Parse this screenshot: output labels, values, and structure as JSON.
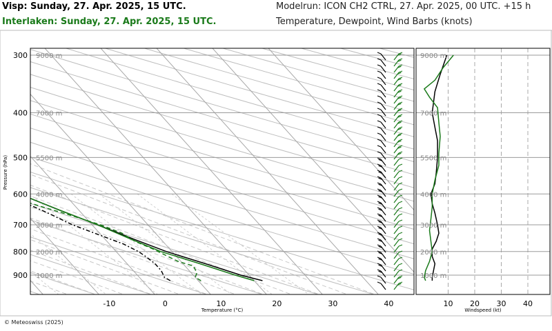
{
  "header": {
    "station1": "Visp: Sunday, 27. Apr. 2025, 15 UTC.",
    "station2": "Interlaken: Sunday, 27. Apr. 2025, 15 UTC.",
    "modelrun": "Modelrun: ICON CH2 CTRL, 27. Apr. 2025, 00 UTC. +15 h",
    "variables": "Temperature, Dewpoint, Wind Barbs (knots)"
  },
  "footer": {
    "copyright": "© Meteoswiss (2025)"
  },
  "colors": {
    "visp": "#000000",
    "interlaken": "#1a7a1a",
    "grid": "#c0c0c0"
  },
  "chart_data": [
    {
      "type": "line",
      "subtype": "skew-t log-p",
      "xlabel": "Temperature (°C)",
      "ylabel": "Pressure (hPa)",
      "x_ticks": [
        -10,
        0,
        10,
        20,
        30,
        40
      ],
      "y_ticks": [
        300,
        400,
        500,
        600,
        700,
        800,
        900
      ],
      "altitude_labels": [
        {
          "text": "9000 m",
          "p": 300
        },
        {
          "text": "7000 m",
          "p": 400
        },
        {
          "text": "5500 m",
          "p": 500
        },
        {
          "text": "4000 m",
          "p": 600
        },
        {
          "text": "3000 m",
          "p": 700
        },
        {
          "text": "2000 m",
          "p": 800
        },
        {
          "text": "1000 m",
          "p": 900
        }
      ],
      "series": [
        {
          "station": "visp",
          "kind": "temperature",
          "points": [
            [
              925,
              21.5
            ],
            [
              900,
              18.5
            ],
            [
              850,
              14.0
            ],
            [
              800,
              9.0
            ],
            [
              750,
              5.0
            ],
            [
              700,
              1.0
            ],
            [
              650,
              -3.5
            ],
            [
              600,
              -8.0
            ],
            [
              550,
              -13.0
            ],
            [
              500,
              -19.0
            ],
            [
              450,
              -25.0
            ],
            [
              400,
              -31.0
            ],
            [
              350,
              -38.0
            ],
            [
              300,
              -45.5
            ]
          ]
        },
        {
          "station": "visp",
          "kind": "dewpoint",
          "points": [
            [
              925,
              5.0
            ],
            [
              910,
              4.5
            ],
            [
              880,
              5.0
            ],
            [
              850,
              5.0
            ],
            [
              820,
              4.5
            ],
            [
              800,
              4.0
            ],
            [
              770,
              2.5
            ],
            [
              740,
              0.0
            ],
            [
              700,
              -3.5
            ],
            [
              660,
              -6.0
            ],
            [
              620,
              -9.0
            ],
            [
              590,
              -11.0
            ],
            [
              560,
              -14.0
            ],
            [
              530,
              -18.0
            ],
            [
              520,
              -24.0
            ],
            [
              500,
              -30.0
            ],
            [
              480,
              -35.0
            ],
            [
              460,
              -38.0
            ],
            [
              440,
              -36.0
            ],
            [
              420,
              -30.0
            ],
            [
              400,
              -31.0
            ],
            [
              380,
              -36.0
            ],
            [
              355,
              -44.0
            ],
            [
              330,
              -45.5
            ],
            [
              300,
              -45.5
            ]
          ]
        },
        {
          "station": "interlaken",
          "kind": "temperature",
          "points": [
            [
              925,
              20.0
            ],
            [
              900,
              17.5
            ],
            [
              850,
              13.0
            ],
            [
              800,
              8.0
            ],
            [
              750,
              4.5
            ],
            [
              700,
              1.0
            ],
            [
              650,
              -3.5
            ],
            [
              600,
              -8.0
            ],
            [
              550,
              -13.0
            ],
            [
              500,
              -18.5
            ],
            [
              450,
              -25.0
            ],
            [
              400,
              -31.0
            ],
            [
              350,
              -38.0
            ],
            [
              300,
              -45.5
            ]
          ]
        },
        {
          "station": "interlaken",
          "kind": "dewpoint",
          "points": [
            [
              925,
              10.5
            ],
            [
              910,
              10.0
            ],
            [
              890,
              11.0
            ],
            [
              860,
              11.5
            ],
            [
              840,
              9.5
            ],
            [
              820,
              8.5
            ],
            [
              790,
              7.0
            ],
            [
              760,
              5.0
            ],
            [
              730,
              4.0
            ],
            [
              700,
              1.5
            ],
            [
              670,
              -2.0
            ],
            [
              640,
              -6.0
            ],
            [
              610,
              -10.0
            ],
            [
              580,
              -15.0
            ],
            [
              550,
              -18.5
            ],
            [
              520,
              -20.0
            ],
            [
              500,
              -24.0
            ],
            [
              480,
              -31.0
            ],
            [
              460,
              -37.0
            ],
            [
              440,
              -36.0
            ],
            [
              420,
              -34.0
            ],
            [
              400,
              -31.0
            ],
            [
              380,
              -33.0
            ],
            [
              360,
              -38.0
            ],
            [
              340,
              -45.0
            ],
            [
              320,
              -45.5
            ],
            [
              300,
              -45.5
            ]
          ]
        }
      ]
    },
    {
      "type": "line",
      "xlabel": "Windspeed (kt)",
      "x_ticks": [
        10,
        20,
        30,
        40
      ],
      "altitude_labels": [
        "9000 m",
        "7000 m",
        "5500 m",
        "4000 m",
        "3000 m",
        "2000 m",
        "1000 m"
      ],
      "series": [
        {
          "station": "visp",
          "points": [
            [
              300,
              9.5
            ],
            [
              330,
              7
            ],
            [
              360,
              5
            ],
            [
              400,
              4
            ],
            [
              430,
              5
            ],
            [
              460,
              6
            ],
            [
              500,
              6
            ],
            [
              540,
              5.5
            ],
            [
              570,
              5
            ],
            [
              600,
              3.5
            ],
            [
              630,
              4
            ],
            [
              660,
              5
            ],
            [
              700,
              6
            ],
            [
              730,
              6.5
            ],
            [
              760,
              5.5
            ],
            [
              790,
              4
            ],
            [
              820,
              4
            ],
            [
              850,
              5
            ],
            [
              880,
              4.5
            ],
            [
              910,
              4
            ],
            [
              925,
              4
            ]
          ]
        },
        {
          "station": "interlaken",
          "points": [
            [
              300,
              12
            ],
            [
              320,
              8
            ],
            [
              340,
              5
            ],
            [
              355,
              1
            ],
            [
              370,
              3
            ],
            [
              390,
              6
            ],
            [
              420,
              6.5
            ],
            [
              450,
              7
            ],
            [
              490,
              6.5
            ],
            [
              520,
              6.5
            ],
            [
              560,
              5
            ],
            [
              600,
              4
            ],
            [
              640,
              4
            ],
            [
              680,
              3.5
            ],
            [
              720,
              3
            ],
            [
              760,
              3.5
            ],
            [
              800,
              4
            ],
            [
              840,
              3
            ],
            [
              880,
              1.5
            ],
            [
              910,
              1
            ],
            [
              925,
              1.5
            ]
          ]
        }
      ]
    }
  ]
}
